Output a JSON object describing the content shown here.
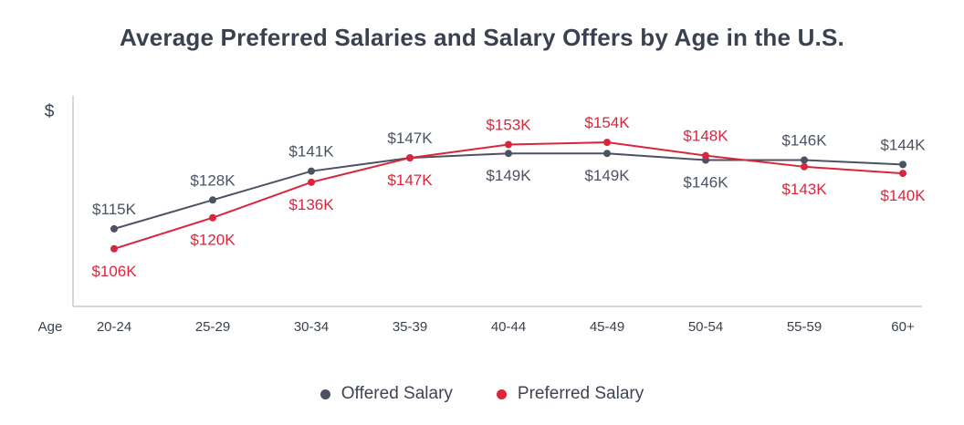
{
  "chart_data": {
    "type": "line",
    "title": "Average Preferred Salaries and Salary Offers by Age in the U.S.",
    "ylabel": "$",
    "xlabel": "Age",
    "categories": [
      "20-24",
      "25-29",
      "30-34",
      "35-39",
      "40-44",
      "45-49",
      "50-54",
      "55-59",
      "60+"
    ],
    "ylim": [
      80,
      175
    ],
    "grid": false,
    "legend_position": "bottom",
    "series": [
      {
        "name": "Offered Salary",
        "color": "#4b5263",
        "values": [
          115,
          128,
          141,
          147,
          149,
          149,
          146,
          146,
          144
        ],
        "labels": [
          "$115K",
          "$128K",
          "$141K",
          "$147K",
          "$149K",
          "$149K",
          "$146K",
          "$146K",
          "$144K"
        ]
      },
      {
        "name": "Preferred Salary",
        "color": "#d8263d",
        "values": [
          106,
          120,
          136,
          147,
          153,
          154,
          148,
          143,
          140
        ],
        "labels": [
          "$106K",
          "$120K",
          "$136K",
          "$147K",
          "$153K",
          "$154K",
          "$148K",
          "$143K",
          "$140K"
        ]
      }
    ]
  }
}
